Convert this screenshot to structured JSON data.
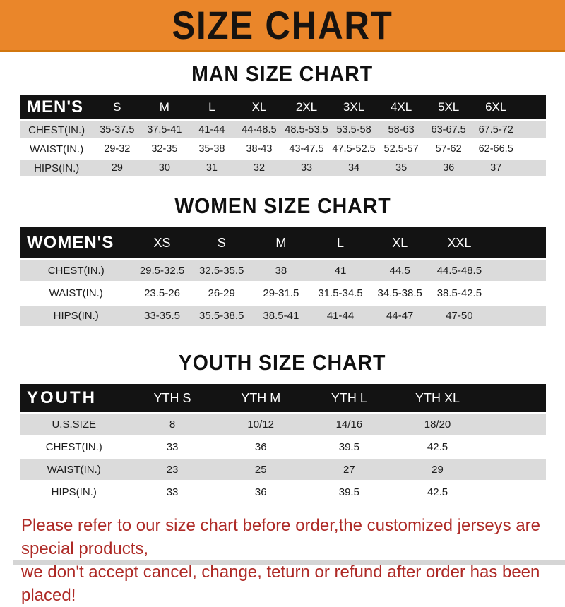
{
  "banner": {
    "title": "SIZE CHART",
    "bg_color": "#EA862A",
    "text_color": "#171310"
  },
  "colors": {
    "header_bar": "#131313",
    "row_gray": "#DBDBDB",
    "footer_red": "#AE2A26"
  },
  "sections": [
    {
      "heading": "MAN SIZE CHART",
      "table": {
        "header_label": "MEN'S",
        "columns": [
          "S",
          "M",
          "L",
          "XL",
          "2XL",
          "3XL",
          "4XL",
          "5XL",
          "6XL"
        ],
        "rows": [
          {
            "label": "CHEST(IN.)",
            "values": [
              "35-37.5",
              "37.5-41",
              "41-44",
              "44-48.5",
              "48.5-53.5",
              "53.5-58",
              "58-63",
              "63-67.5",
              "67.5-72"
            ]
          },
          {
            "label": "WAIST(IN.)",
            "values": [
              "29-32",
              "32-35",
              "35-38",
              "38-43",
              "43-47.5",
              "47.5-52.5",
              "52.5-57",
              "57-62",
              "62-66.5"
            ]
          },
          {
            "label": "HIPS(IN.)",
            "values": [
              "29",
              "30",
              "31",
              "32",
              "33",
              "34",
              "35",
              "36",
              "37"
            ]
          }
        ]
      }
    },
    {
      "heading": "WOMEN SIZE CHART",
      "table": {
        "header_label": "WOMEN'S",
        "columns": [
          "XS",
          "S",
          "M",
          "L",
          "XL",
          "XXL"
        ],
        "rows": [
          {
            "label": "CHEST(IN.)",
            "values": [
              "29.5-32.5",
              "32.5-35.5",
              "38",
              "41",
              "44.5",
              "44.5-48.5"
            ]
          },
          {
            "label": "WAIST(IN.)",
            "values": [
              "23.5-26",
              "26-29",
              "29-31.5",
              "31.5-34.5",
              "34.5-38.5",
              "38.5-42.5"
            ]
          },
          {
            "label": "HIPS(IN.)",
            "values": [
              "33-35.5",
              "35.5-38.5",
              "38.5-41",
              "41-44",
              "44-47",
              "47-50"
            ]
          }
        ]
      }
    },
    {
      "heading": "YOUTH SIZE CHART",
      "table": {
        "header_label": "YOUTH",
        "columns": [
          "YTH S",
          "YTH M",
          "YTH L",
          "YTH XL"
        ],
        "rows": [
          {
            "label": "U.S.SIZE",
            "values": [
              "8",
              "10/12",
              "14/16",
              "18/20"
            ]
          },
          {
            "label": "CHEST(IN.)",
            "values": [
              "33",
              "36",
              "39.5",
              "42.5"
            ]
          },
          {
            "label": "WAIST(IN.)",
            "values": [
              "23",
              "25",
              "27",
              "29"
            ]
          },
          {
            "label": "HIPS(IN.)",
            "values": [
              "33",
              "36",
              "39.5",
              "42.5"
            ]
          }
        ]
      }
    }
  ],
  "footer": {
    "line1": "Please refer to our size chart before order,the customized jerseys are special products,",
    "line2": "we don't accept cancel, change, teturn or refund after order has been placed!"
  }
}
